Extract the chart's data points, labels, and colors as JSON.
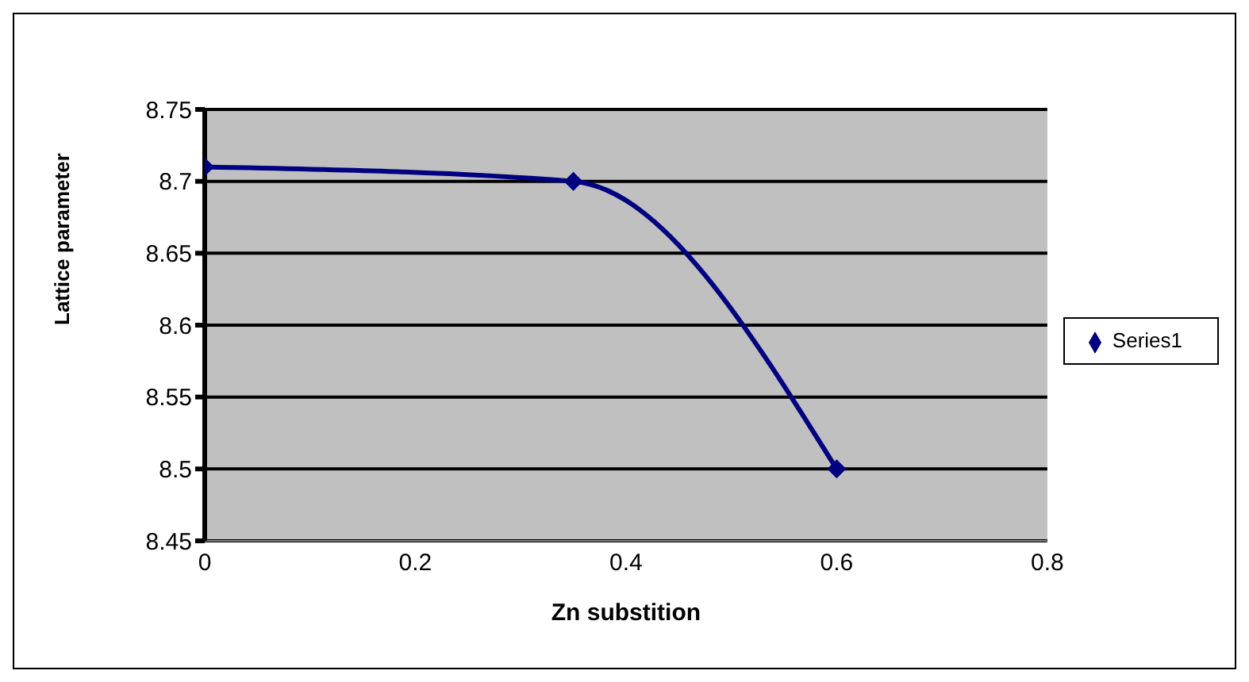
{
  "chart_data": {
    "type": "line",
    "xlabel": "Zn substition",
    "ylabel": "Lattice parameter",
    "x": [
      0,
      0.35,
      0.6
    ],
    "series": [
      {
        "name": "Series1",
        "color": "#000080",
        "values": [
          8.71,
          8.7,
          8.5
        ]
      }
    ],
    "xlim": [
      0,
      0.8
    ],
    "xticks": [
      0,
      0.2,
      0.4,
      0.6,
      0.8
    ],
    "ylim": [
      8.45,
      8.75
    ],
    "yticks": [
      8.45,
      8.5,
      8.55,
      8.6,
      8.65,
      8.7,
      8.75
    ],
    "grid": "y",
    "legend": "right",
    "marker": "diamond",
    "line_style": "solid"
  }
}
